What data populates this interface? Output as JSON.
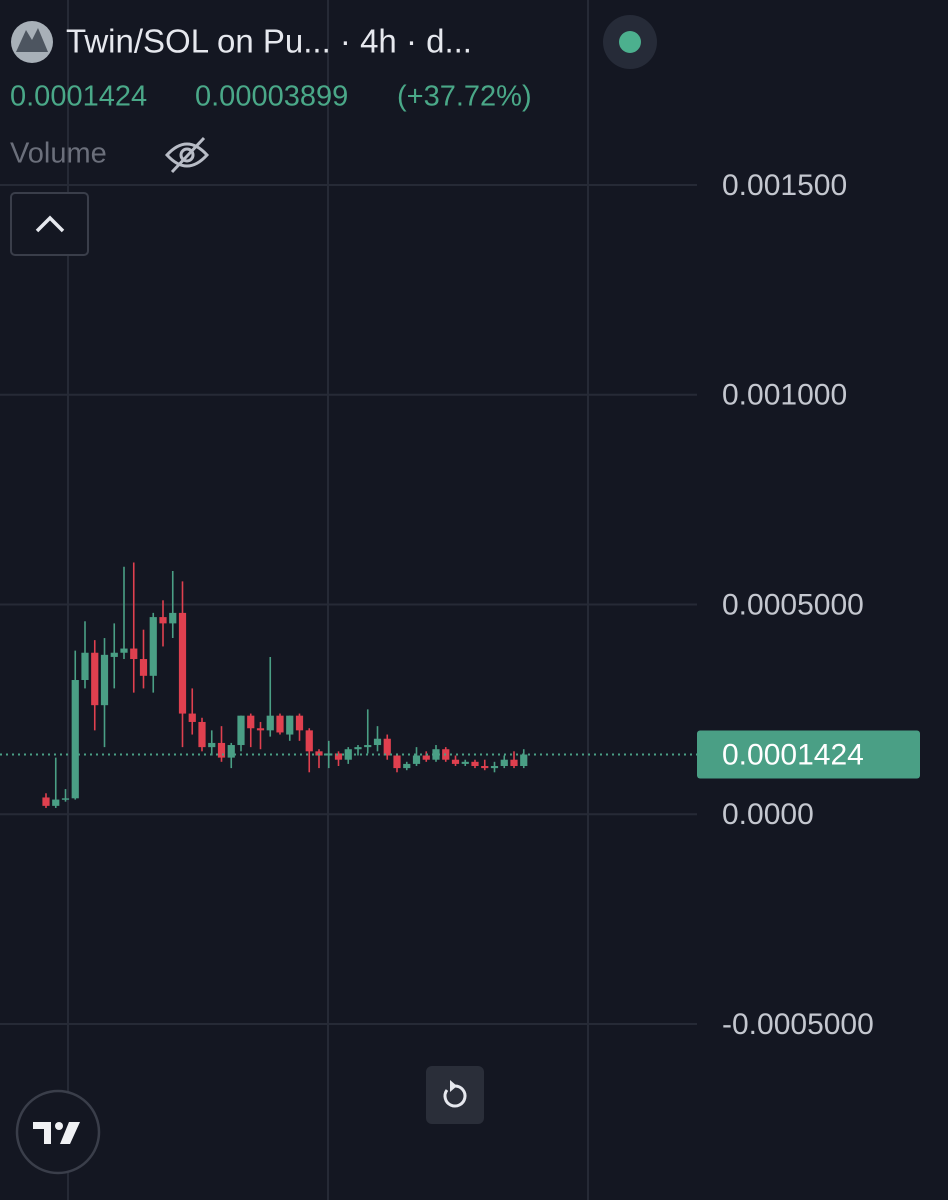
{
  "chart_data": {
    "type": "candlestick",
    "title": "Twin/SOL on Pu... · 4h · d...",
    "last_price": 0.0001424,
    "change": 3.899e-05,
    "change_pct_label": "(+37.72%)",
    "volume_label": "Volume",
    "up_color": "#4a9f85",
    "down_color": "#e0404f",
    "grid": true,
    "categories": [
      null,
      null,
      null,
      null,
      null,
      null,
      null,
      null,
      null,
      null,
      null,
      null,
      null,
      null,
      null,
      null,
      null,
      null,
      null,
      null,
      null,
      null,
      null,
      null,
      null,
      null,
      null,
      null,
      null,
      null,
      null,
      null,
      null,
      null,
      null,
      null,
      null,
      null,
      null,
      null,
      null,
      null,
      null,
      null,
      null,
      null,
      null,
      null,
      null,
      null
    ],
    "open": [
      4e-05,
      2e-05,
      3.5e-05,
      3.8e-05,
      0.00032,
      0.000385,
      0.00026,
      0.000375,
      0.000385,
      0.000395,
      0.00037,
      0.00033,
      0.00047,
      0.000455,
      0.00048,
      0.00024,
      0.00022,
      0.00016,
      0.00017,
      0.000135,
      0.000165,
      0.000235,
      0.000205,
      0.0002,
      0.000235,
      0.00019,
      0.000235,
      0.0002,
      0.00015,
      0.00014,
      0.000145,
      0.00013,
      0.000155,
      0.00016,
      0.000165,
      0.00018,
      0.00014,
      0.00011,
      0.00012,
      0.00014,
      0.00013,
      0.000155,
      0.00013,
      0.00012,
      0.000125,
      0.000115,
      0.00011,
      0.000115,
      0.00013,
      0.000115
    ],
    "high": [
      5e-05,
      0.000135,
      6e-05,
      0.00039,
      0.00046,
      0.000415,
      0.00042,
      0.000455,
      0.00059,
      0.0006,
      0.00044,
      0.00048,
      0.00051,
      0.00058,
      0.000555,
      0.0003,
      0.00023,
      0.0002,
      0.00021,
      0.00017,
      0.000235,
      0.00024,
      0.00022,
      0.000375,
      0.00024,
      0.000235,
      0.00024,
      0.000205,
      0.000155,
      0.000175,
      0.00015,
      0.00016,
      0.000165,
      0.00025,
      0.00021,
      0.00019,
      0.000145,
      0.000125,
      0.00016,
      0.00015,
      0.000165,
      0.00016,
      0.00014,
      0.00013,
      0.00013,
      0.00013,
      0.000125,
      0.00014,
      0.00015,
      0.000155
    ],
    "low": [
      1.5e-05,
      1.5e-05,
      3e-05,
      3.5e-05,
      0.0003,
      0.0002,
      0.00016,
      0.0003,
      0.00037,
      0.00029,
      0.0003,
      0.00029,
      0.0004,
      0.00042,
      0.00016,
      0.00019,
      0.00015,
      0.00014,
      0.000125,
      0.00011,
      0.00015,
      0.00016,
      0.000155,
      0.000185,
      0.00019,
      0.000175,
      0.000175,
      0.0001,
      0.00011,
      0.00011,
      0.000115,
      0.00012,
      0.00014,
      0.000145,
      0.00015,
      0.00013,
      0.0001,
      0.000105,
      0.000115,
      0.000125,
      0.000125,
      0.000125,
      0.000115,
      0.000115,
      0.00011,
      0.000105,
      0.0001,
      0.00011,
      0.00011,
      0.00011
    ],
    "close": [
      2e-05,
      3.5e-05,
      3.8e-05,
      0.00032,
      0.000385,
      0.00026,
      0.00038,
      0.000385,
      0.000395,
      0.00037,
      0.00033,
      0.00047,
      0.000455,
      0.00048,
      0.00024,
      0.00022,
      0.00016,
      0.00017,
      0.000135,
      0.000165,
      0.000235,
      0.000205,
      0.0002,
      0.000235,
      0.000195,
      0.000235,
      0.0002,
      0.00015,
      0.00014,
      0.000145,
      0.00013,
      0.000155,
      0.00016,
      0.000165,
      0.00018,
      0.00014,
      0.00011,
      0.00012,
      0.00014,
      0.00013,
      0.000155,
      0.00013,
      0.00012,
      0.000125,
      0.000115,
      0.00011,
      0.000115,
      0.00013,
      0.000115,
      0.0001424
    ],
    "ylim": [
      -0.0005,
      0.0015
    ],
    "yticks": [
      {
        "value": 0.0015,
        "label": "0.001500"
      },
      {
        "value": 0.001,
        "label": "0.001000"
      },
      {
        "value": 0.0005,
        "label": "0.0005000"
      },
      {
        "value": 0,
        "label": "0.0000"
      },
      {
        "value": -0.0005,
        "label": "-0.0005000"
      }
    ]
  }
}
